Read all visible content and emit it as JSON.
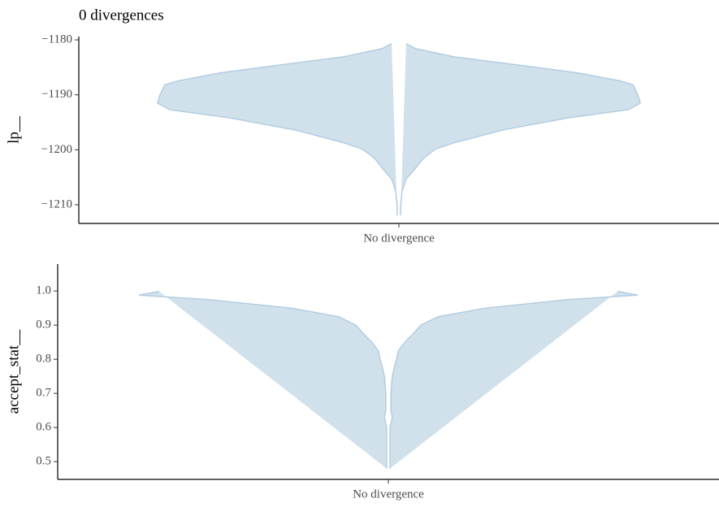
{
  "chart_data": [
    {
      "type": "violin",
      "title": "0 divergences",
      "ylabel": "lp__",
      "categories": [
        "No divergence"
      ],
      "color": "#d1e1ec",
      "edgecolor": "#b3cde0",
      "ylim": [
        -1213.4,
        -1179.4
      ],
      "yticks": [
        {
          "value": -1180,
          "label": "−1180"
        },
        {
          "value": -1190,
          "label": "−1190"
        },
        {
          "value": -1200,
          "label": "−1200"
        },
        {
          "value": -1210,
          "label": "−1210"
        }
      ],
      "y": [
        -1180.7,
        -1181.6,
        -1183.1,
        -1184.6,
        -1186.0,
        -1187.5,
        -1188.2,
        -1190.0,
        -1191.5,
        -1192.7,
        -1194.2,
        -1196.4,
        -1198.7,
        -1199.9,
        -1201.6,
        -1203.8,
        -1205.3,
        -1207.5,
        -1209.0,
        -1210.4,
        -1211.9
      ],
      "density": [
        0.03,
        0.07,
        0.23,
        0.5,
        0.74,
        0.92,
        0.97,
        0.99,
        1.0,
        0.95,
        0.7,
        0.43,
        0.23,
        0.15,
        0.1,
        0.06,
        0.03,
        0.013,
        0.01,
        0.007,
        0.007
      ]
    },
    {
      "type": "violin",
      "ylabel": "accept_stat__",
      "categories": [
        "No divergence"
      ],
      "color": "#d1e1ec",
      "edgecolor": "#b3cde0",
      "ylim": [
        0.448,
        1.079
      ],
      "yticks": [
        {
          "value": 1,
          "label": "1.0"
        },
        0.9,
        0.8,
        0.7,
        0.6,
        0.5
      ],
      "y": [
        0.999,
        0.988,
        0.975,
        0.95,
        0.925,
        0.9,
        0.875,
        0.85,
        0.825,
        0.8,
        0.775,
        0.75,
        0.7,
        0.65,
        0.63,
        0.6,
        0.55,
        0.5,
        0.48
      ],
      "density": [
        0.92,
        1.0,
        0.72,
        0.39,
        0.2,
        0.13,
        0.1,
        0.066,
        0.04,
        0.033,
        0.023,
        0.016,
        0.01,
        0.01,
        0.016,
        0.007,
        0.007,
        0.007,
        0.007
      ]
    }
  ]
}
